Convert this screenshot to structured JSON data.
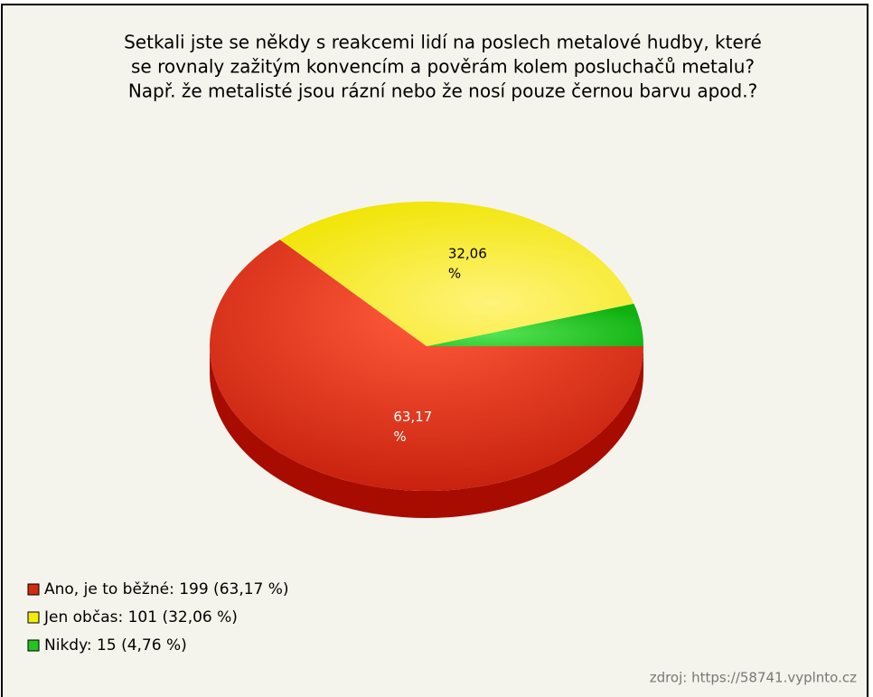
{
  "chart_data": {
    "type": "pie",
    "title": [
      "Setkali jste se někdy s reakcemi lidí na poslech metalové hudby, které",
      "se rovnaly zažitým konvencím a pověrám kolem posluchačů metalu?",
      "Např. že metalisté jsou rázní nebo že nosí pouze černou barvu apod.?"
    ],
    "categories": [
      "Ano, je to běžné: 199 (63,17 %)",
      "Jen občas: 101 (32,06 %)",
      "Nikdy: 15 (4,76 %)"
    ],
    "values": [
      63.17,
      32.06,
      4.76
    ],
    "value_labels": [
      "63,17 %",
      "32,06 %",
      null
    ],
    "colors": [
      "#d22b10",
      "#f2ea10",
      "#22c422"
    ],
    "source": "zdroj: https://58741.vyplnto.cz"
  }
}
